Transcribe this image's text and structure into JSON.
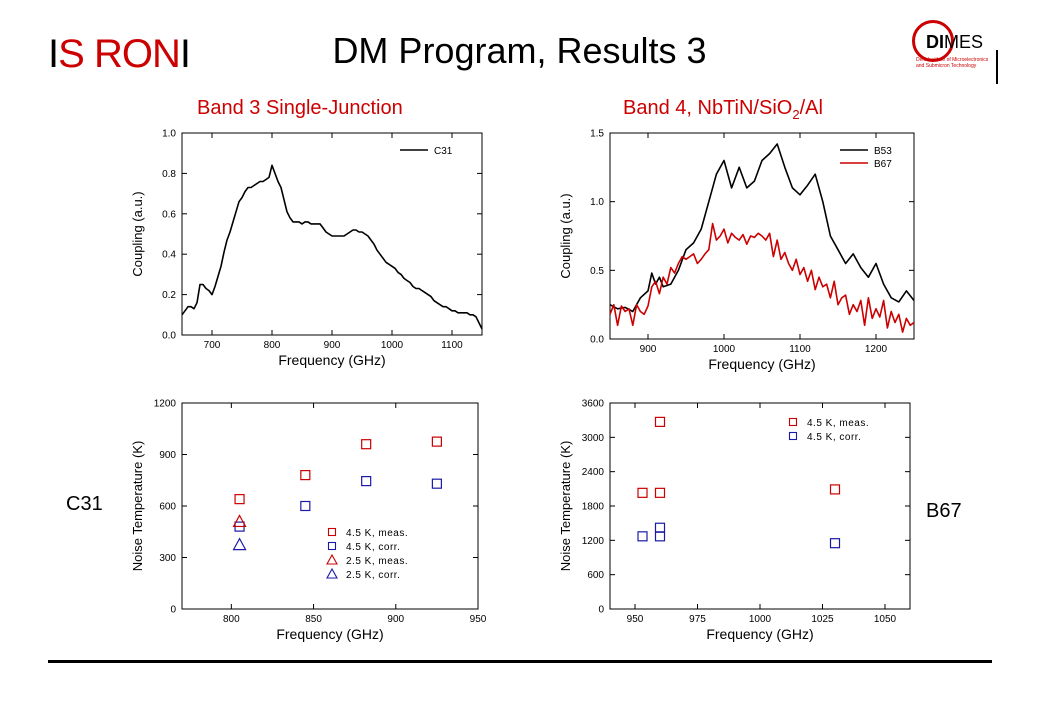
{
  "header": {
    "title": "DM Program, Results 3",
    "logo_left": {
      "part1": "I",
      "part2": "S",
      "part3": "R",
      "part4": "ON",
      "part5": "I"
    },
    "logo_right": {
      "word_bold": "DI",
      "word_rest": "MES",
      "subtext": "Delft Institute of Microelectronics and Submicron Technology"
    }
  },
  "labels": {
    "left_subtitle": "Band 3 Single-Junction",
    "right_subtitle_pre": "Band 4, NbTiN/SiO",
    "right_subtitle_sub": "2",
    "right_subtitle_post": "/Al",
    "left_side": "C31",
    "right_side": "B67"
  },
  "colors": {
    "black": "#000000",
    "red": "#cc0000",
    "blue": "#1a1aa6"
  },
  "chart_data": [
    {
      "type": "line",
      "xlabel": "Frequency (GHz)",
      "ylabel": "Coupling (a.u.)",
      "xlim": [
        650,
        1150
      ],
      "ylim": [
        0,
        1.0
      ],
      "xticks": [
        700,
        800,
        900,
        1000,
        1100
      ],
      "yticks": [
        "0.0",
        "0.2",
        "0.4",
        "0.6",
        "0.8",
        "1.0"
      ],
      "legend": "top-right",
      "series": [
        {
          "name": "C31",
          "color": "#000000",
          "x": [
            650,
            655,
            660,
            665,
            670,
            675,
            680,
            685,
            690,
            695,
            700,
            705,
            710,
            715,
            720,
            725,
            730,
            735,
            740,
            745,
            750,
            755,
            760,
            765,
            770,
            775,
            780,
            785,
            790,
            795,
            800,
            805,
            810,
            815,
            820,
            825,
            830,
            835,
            840,
            845,
            850,
            855,
            860,
            865,
            870,
            875,
            880,
            885,
            890,
            895,
            900,
            905,
            910,
            915,
            920,
            925,
            930,
            935,
            940,
            945,
            950,
            955,
            960,
            965,
            970,
            975,
            980,
            985,
            990,
            995,
            1000,
            1005,
            1010,
            1015,
            1020,
            1025,
            1030,
            1035,
            1040,
            1045,
            1050,
            1055,
            1060,
            1065,
            1070,
            1075,
            1080,
            1085,
            1090,
            1095,
            1100,
            1105,
            1110,
            1115,
            1120,
            1125,
            1130,
            1135,
            1140,
            1145,
            1150
          ],
          "y": [
            0.1,
            0.12,
            0.14,
            0.14,
            0.13,
            0.16,
            0.25,
            0.25,
            0.23,
            0.22,
            0.2,
            0.24,
            0.29,
            0.34,
            0.41,
            0.47,
            0.51,
            0.56,
            0.61,
            0.66,
            0.68,
            0.71,
            0.73,
            0.73,
            0.74,
            0.75,
            0.76,
            0.76,
            0.77,
            0.78,
            0.84,
            0.8,
            0.76,
            0.73,
            0.67,
            0.61,
            0.58,
            0.56,
            0.56,
            0.56,
            0.55,
            0.56,
            0.56,
            0.55,
            0.55,
            0.55,
            0.55,
            0.53,
            0.51,
            0.5,
            0.49,
            0.49,
            0.49,
            0.49,
            0.49,
            0.5,
            0.51,
            0.52,
            0.52,
            0.51,
            0.51,
            0.5,
            0.49,
            0.47,
            0.45,
            0.42,
            0.4,
            0.38,
            0.36,
            0.35,
            0.34,
            0.33,
            0.31,
            0.3,
            0.28,
            0.27,
            0.26,
            0.24,
            0.23,
            0.23,
            0.22,
            0.21,
            0.2,
            0.19,
            0.17,
            0.16,
            0.15,
            0.14,
            0.14,
            0.13,
            0.12,
            0.12,
            0.11,
            0.11,
            0.11,
            0.11,
            0.1,
            0.1,
            0.09,
            0.06,
            0.03
          ]
        }
      ]
    },
    {
      "type": "line",
      "xlabel": "Frequency (GHz)",
      "ylabel": "Coupling (a.u.)",
      "xlim": [
        850,
        1250
      ],
      "ylim": [
        0,
        1.5
      ],
      "xticks": [
        900,
        1000,
        1100,
        1200
      ],
      "yticks": [
        "0.0",
        "0.5",
        "1.0",
        "1.5"
      ],
      "legend": "top-right",
      "series": [
        {
          "name": "B53",
          "color": "#000000",
          "x": [
            850,
            860,
            870,
            880,
            890,
            900,
            905,
            910,
            915,
            920,
            930,
            940,
            950,
            960,
            970,
            980,
            990,
            1000,
            1010,
            1020,
            1030,
            1040,
            1050,
            1060,
            1070,
            1080,
            1090,
            1100,
            1110,
            1120,
            1130,
            1140,
            1150,
            1160,
            1170,
            1180,
            1190,
            1200,
            1210,
            1220,
            1230,
            1240,
            1250
          ],
          "y": [
            0.25,
            0.22,
            0.23,
            0.2,
            0.3,
            0.35,
            0.48,
            0.4,
            0.45,
            0.38,
            0.4,
            0.5,
            0.65,
            0.7,
            0.8,
            1.0,
            1.2,
            1.3,
            1.1,
            1.25,
            1.1,
            1.15,
            1.3,
            1.35,
            1.42,
            1.25,
            1.1,
            1.05,
            1.12,
            1.2,
            1.0,
            0.75,
            0.65,
            0.55,
            0.62,
            0.52,
            0.45,
            0.55,
            0.4,
            0.3,
            0.27,
            0.35,
            0.28
          ]
        },
        {
          "name": "B67",
          "color": "#cc0000",
          "x": [
            850,
            855,
            860,
            865,
            870,
            875,
            880,
            885,
            890,
            895,
            900,
            905,
            910,
            915,
            920,
            925,
            930,
            935,
            940,
            945,
            950,
            955,
            960,
            965,
            970,
            975,
            980,
            985,
            990,
            995,
            1000,
            1005,
            1010,
            1015,
            1020,
            1025,
            1030,
            1035,
            1040,
            1045,
            1050,
            1055,
            1060,
            1065,
            1070,
            1075,
            1080,
            1085,
            1090,
            1095,
            1100,
            1105,
            1110,
            1115,
            1120,
            1125,
            1130,
            1135,
            1140,
            1145,
            1150,
            1155,
            1160,
            1165,
            1170,
            1175,
            1180,
            1185,
            1190,
            1195,
            1200,
            1205,
            1210,
            1215,
            1220,
            1225,
            1230,
            1235,
            1240,
            1245,
            1250
          ],
          "y": [
            0.18,
            0.25,
            0.1,
            0.24,
            0.2,
            0.22,
            0.1,
            0.25,
            0.2,
            0.18,
            0.24,
            0.38,
            0.42,
            0.33,
            0.45,
            0.4,
            0.52,
            0.48,
            0.55,
            0.6,
            0.58,
            0.6,
            0.62,
            0.55,
            0.58,
            0.62,
            0.65,
            0.84,
            0.72,
            0.75,
            0.8,
            0.7,
            0.77,
            0.74,
            0.72,
            0.76,
            0.69,
            0.75,
            0.74,
            0.77,
            0.75,
            0.72,
            0.77,
            0.6,
            0.72,
            0.58,
            0.63,
            0.55,
            0.5,
            0.58,
            0.47,
            0.52,
            0.42,
            0.5,
            0.36,
            0.45,
            0.38,
            0.4,
            0.3,
            0.42,
            0.25,
            0.3,
            0.32,
            0.18,
            0.25,
            0.2,
            0.28,
            0.1,
            0.3,
            0.15,
            0.22,
            0.16,
            0.28,
            0.08,
            0.2,
            0.12,
            0.18,
            0.05,
            0.15,
            0.1,
            0.12
          ]
        }
      ]
    },
    {
      "type": "scatter",
      "xlabel": "Frequency (GHz)",
      "ylabel": "Noise Temperature (K)",
      "xlim": [
        770,
        950
      ],
      "ylim": [
        0,
        1200
      ],
      "xticks": [
        800,
        850,
        900,
        950
      ],
      "yticks": [
        "0",
        "300",
        "600",
        "900",
        "1200"
      ],
      "legend": "bottom-right",
      "series": [
        {
          "name": "4.5 K, meas.",
          "marker": "square",
          "color": "#cc0000",
          "x": [
            805,
            845,
            882,
            925
          ],
          "y": [
            640,
            780,
            960,
            975
          ]
        },
        {
          "name": "4.5 K, corr.",
          "marker": "square",
          "color": "#1a1aa6",
          "x": [
            805,
            845,
            882,
            925
          ],
          "y": [
            480,
            600,
            745,
            730
          ]
        },
        {
          "name": "2.5 K, meas.",
          "marker": "triangle",
          "color": "#cc0000",
          "x": [
            805
          ],
          "y": [
            510
          ]
        },
        {
          "name": "2.5 K, corr.",
          "marker": "triangle",
          "color": "#1a1aa6",
          "x": [
            805
          ],
          "y": [
            375
          ]
        }
      ]
    },
    {
      "type": "scatter",
      "xlabel": "Frequency (GHz)",
      "ylabel": "Noise Temperature (K)",
      "xlim": [
        940,
        1060
      ],
      "ylim": [
        0,
        3600
      ],
      "xticks": [
        950,
        975,
        1000,
        1025,
        1050
      ],
      "yticks": [
        "0",
        "600",
        "1200",
        "1800",
        "2400",
        "3000",
        "3600"
      ],
      "legend": "top-right",
      "series": [
        {
          "name": "4.5 K, meas.",
          "marker": "square",
          "color": "#cc0000",
          "x": [
            953,
            960,
            960,
            1030
          ],
          "y": [
            2030,
            2030,
            3270,
            2090
          ]
        },
        {
          "name": "4.5 K, corr.",
          "marker": "square",
          "color": "#1a1aa6",
          "x": [
            953,
            960,
            960,
            1030
          ],
          "y": [
            1270,
            1270,
            1420,
            1150
          ]
        }
      ]
    }
  ]
}
